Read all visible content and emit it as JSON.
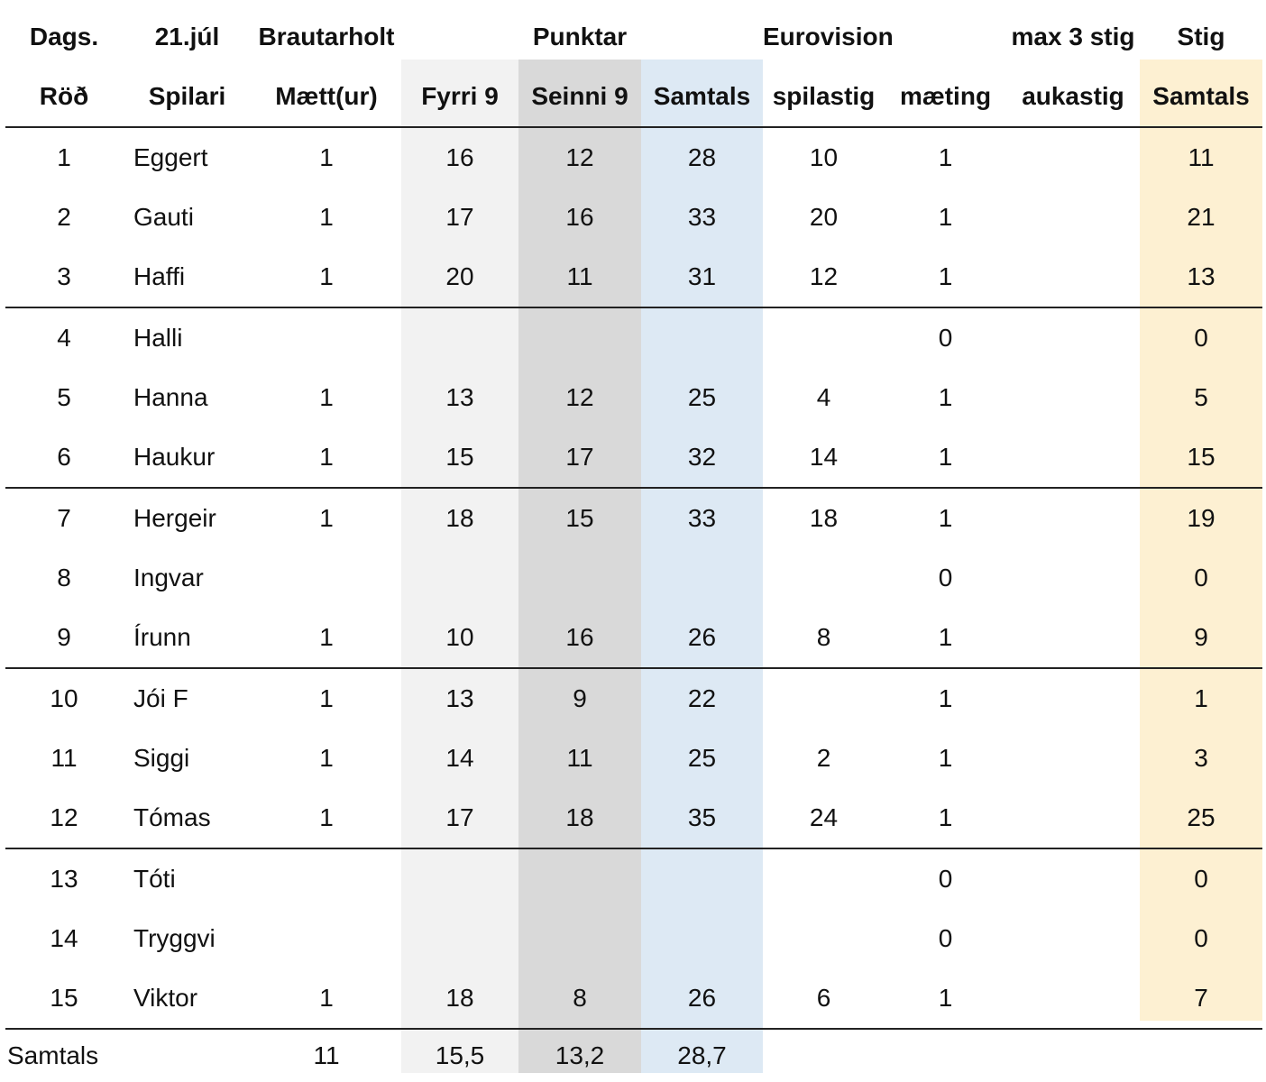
{
  "header_row1": [
    "Dags.",
    "21.júl",
    "Brautarholt",
    "",
    "Punktar",
    "",
    "Eurovision",
    "",
    "max 3 stig",
    "Stig"
  ],
  "header_row2": [
    "Röð",
    "Spilari",
    "Mætt(ur)",
    "Fyrri 9",
    "Seinni 9",
    "Samtals",
    "spilastig",
    "mæting",
    "aukastig",
    "Samtals"
  ],
  "rows": [
    [
      "1",
      "Eggert",
      "1",
      "16",
      "12",
      "28",
      "10",
      "1",
      "",
      "11"
    ],
    [
      "2",
      "Gauti",
      "1",
      "17",
      "16",
      "33",
      "20",
      "1",
      "",
      "21"
    ],
    [
      "3",
      "Haffi",
      "1",
      "20",
      "11",
      "31",
      "12",
      "1",
      "",
      "13"
    ],
    [
      "4",
      "Halli",
      "",
      "",
      "",
      "",
      "",
      "0",
      "",
      "0"
    ],
    [
      "5",
      "Hanna",
      "1",
      "13",
      "12",
      "25",
      "4",
      "1",
      "",
      "5"
    ],
    [
      "6",
      "Haukur",
      "1",
      "15",
      "17",
      "32",
      "14",
      "1",
      "",
      "15"
    ],
    [
      "7",
      "Hergeir",
      "1",
      "18",
      "15",
      "33",
      "18",
      "1",
      "",
      "19"
    ],
    [
      "8",
      "Ingvar",
      "",
      "",
      "",
      "",
      "",
      "0",
      "",
      "0"
    ],
    [
      "9",
      "Írunn",
      "1",
      "10",
      "16",
      "26",
      "8",
      "1",
      "",
      "9"
    ],
    [
      "10",
      "Jói F",
      "1",
      "13",
      "9",
      "22",
      "",
      "1",
      "",
      "1"
    ],
    [
      "11",
      "Siggi",
      "1",
      "14",
      "11",
      "25",
      "2",
      "1",
      "",
      "3"
    ],
    [
      "12",
      "Tómas",
      "1",
      "17",
      "18",
      "35",
      "24",
      "1",
      "",
      "25"
    ],
    [
      "13",
      "Tóti",
      "",
      "",
      "",
      "",
      "",
      "0",
      "",
      "0"
    ],
    [
      "14",
      "Tryggvi",
      "",
      "",
      "",
      "",
      "",
      "0",
      "",
      "0"
    ],
    [
      "15",
      "Viktor",
      "1",
      "18",
      "8",
      "26",
      "6",
      "1",
      "",
      "7"
    ]
  ],
  "totals": [
    "Samtals",
    "",
    "11",
    "15,5",
    "13,2",
    "28,7",
    "",
    "",
    "",
    ""
  ],
  "colors": {
    "fyrri9_bg": "#f2f2f2",
    "seinni9_bg": "#d9d9d9",
    "samtals_bg": "#dde9f4",
    "stig_bg": "#fdf0d2"
  }
}
